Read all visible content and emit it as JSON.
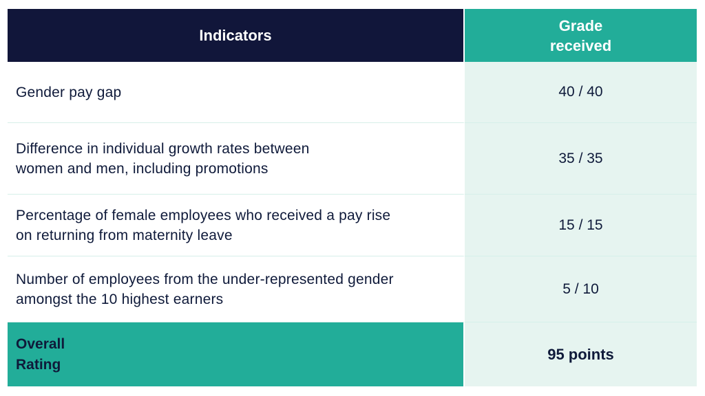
{
  "header": {
    "indicators": "Indicators",
    "grade": "Grade\nreceived"
  },
  "rows": [
    {
      "indicator": "Gender pay gap",
      "grade": "40 / 40"
    },
    {
      "indicator": "Difference in individual growth rates between\nwomen and men, including promotions",
      "grade": "35 / 35"
    },
    {
      "indicator": "Percentage of female employees who received a pay rise\non returning from maternity leave",
      "grade": "15 / 15"
    },
    {
      "indicator": "Number of employees from the under-represented gender\namongst the 10 highest earners",
      "grade": "5 / 10"
    }
  ],
  "overall": {
    "label": "Overall\nRating",
    "value": "95 points"
  },
  "colors": {
    "header_dark": "#11163a",
    "accent_teal": "#22ad99",
    "grade_bg": "#e6f4f0",
    "text": "#0f1a3a"
  }
}
